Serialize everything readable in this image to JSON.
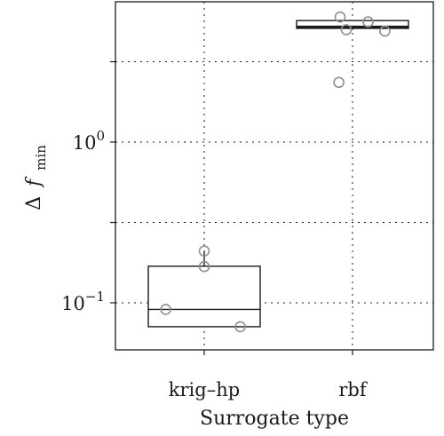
{
  "chart_data": {
    "type": "box",
    "title": "",
    "xlabel": "Surrogate type",
    "ylabel_main": "Δ",
    "ylabel_italic": "f",
    "ylabel_sub": "min",
    "yscale": "log",
    "ylim": [
      0.055,
      7.5
    ],
    "y_major_ticks": [
      {
        "value": 0.1,
        "base": "10",
        "exp": "−1"
      },
      {
        "value": 1,
        "base": "10",
        "exp": "0"
      }
    ],
    "y_grid_values": [
      0.1,
      0.316,
      1,
      3.16
    ],
    "grid": true,
    "categories": [
      "krig–hp",
      "rbf"
    ],
    "boxes": [
      {
        "name": "krig–hp",
        "q1": 0.071,
        "median": 0.091,
        "q3": 0.169,
        "whisker_low": 0.071,
        "whisker_high": 0.21
      },
      {
        "name": "rbf",
        "q1": 5.1,
        "median": 5.2,
        "q3": 5.7,
        "whisker_low": 5.0,
        "whisker_high": 5.75
      }
    ],
    "points": [
      {
        "category": "krig–hp",
        "jitter": 0,
        "y": 0.21
      },
      {
        "category": "krig–hp",
        "jitter": 0,
        "y": 0.168
      },
      {
        "category": "krig–hp",
        "jitter": -0.62,
        "y": 0.091
      },
      {
        "category": "krig–hp",
        "jitter": 0.58,
        "y": 0.071
      },
      {
        "category": "rbf",
        "jitter": -0.2,
        "y": 6.0
      },
      {
        "category": "rbf",
        "jitter": -0.1,
        "y": 5.0
      },
      {
        "category": "rbf",
        "jitter": 0.25,
        "y": 5.6
      },
      {
        "category": "rbf",
        "jitter": 0.52,
        "y": 4.9
      },
      {
        "category": "rbf",
        "jitter": -0.22,
        "y": 2.35
      }
    ]
  }
}
